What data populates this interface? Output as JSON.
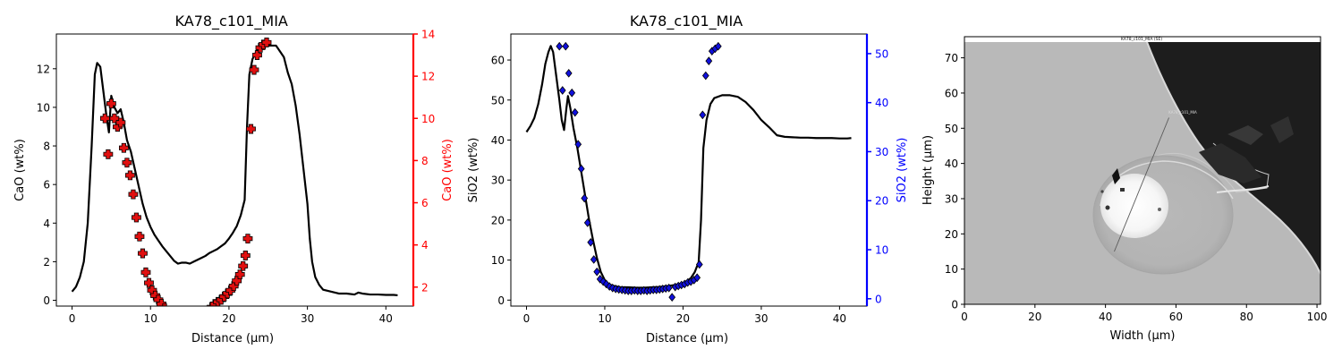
{
  "chart_data": [
    {
      "type": "line",
      "title": "KA78_c101_MIA",
      "xlabel": "Distance (µm)",
      "ylabel": "CaO (wt%)",
      "y2label": "CaO (wt%)",
      "xlim": [
        -2,
        43.5
      ],
      "ylim": [
        -0.3,
        13.8
      ],
      "y2lim": [
        1.1,
        14
      ],
      "xticks": [
        0,
        10,
        20,
        30,
        40
      ],
      "yticks": [
        0,
        2,
        4,
        6,
        8,
        10,
        12
      ],
      "y2ticks": [
        2,
        4,
        6,
        8,
        10,
        12,
        14
      ],
      "y2color": "#ff0000",
      "series": [
        {
          "axis": "left",
          "style": "line",
          "color": "#000000",
          "points": [
            [
              0,
              0.45
            ],
            [
              0.5,
              0.7
            ],
            [
              1,
              1.2
            ],
            [
              1.5,
              2.0
            ],
            [
              2,
              4.0
            ],
            [
              2.5,
              8.0
            ],
            [
              2.9,
              11.7
            ],
            [
              3.2,
              12.3
            ],
            [
              3.6,
              12.1
            ],
            [
              4,
              10.8
            ],
            [
              4.4,
              9.5
            ],
            [
              4.7,
              8.7
            ],
            [
              5,
              10.6
            ],
            [
              5.4,
              10.0
            ],
            [
              5.8,
              9.7
            ],
            [
              6.2,
              9.9
            ],
            [
              6.6,
              9.2
            ],
            [
              7,
              8.3
            ],
            [
              7.5,
              7.7
            ],
            [
              8,
              6.8
            ],
            [
              8.5,
              5.9
            ],
            [
              9,
              5.0
            ],
            [
              9.5,
              4.3
            ],
            [
              10,
              3.8
            ],
            [
              10.5,
              3.4
            ],
            [
              11,
              3.1
            ],
            [
              11.5,
              2.8
            ],
            [
              12,
              2.55
            ],
            [
              12.5,
              2.3
            ],
            [
              13,
              2.05
            ],
            [
              13.5,
              1.9
            ],
            [
              14,
              1.95
            ],
            [
              14.5,
              1.95
            ],
            [
              15,
              1.9
            ],
            [
              15.5,
              2.0
            ],
            [
              16,
              2.1
            ],
            [
              16.5,
              2.2
            ],
            [
              17,
              2.3
            ],
            [
              17.5,
              2.45
            ],
            [
              18,
              2.55
            ],
            [
              18.5,
              2.65
            ],
            [
              19,
              2.8
            ],
            [
              19.5,
              2.95
            ],
            [
              20,
              3.2
            ],
            [
              20.5,
              3.5
            ],
            [
              21,
              3.85
            ],
            [
              21.5,
              4.4
            ],
            [
              22,
              5.2
            ],
            [
              22.3,
              9.0
            ],
            [
              22.6,
              11.7
            ],
            [
              23,
              12.5
            ],
            [
              23.5,
              12.9
            ],
            [
              24,
              13.2
            ],
            [
              24.5,
              13.25
            ],
            [
              25,
              13.2
            ],
            [
              25.5,
              13.2
            ],
            [
              26,
              13.2
            ],
            [
              26.5,
              12.9
            ],
            [
              27,
              12.6
            ],
            [
              27.5,
              11.8
            ],
            [
              28,
              11.2
            ],
            [
              28.5,
              10.1
            ],
            [
              29,
              8.6
            ],
            [
              29.5,
              6.8
            ],
            [
              30,
              5.0
            ],
            [
              30.3,
              3.2
            ],
            [
              30.6,
              2.0
            ],
            [
              31,
              1.2
            ],
            [
              31.5,
              0.8
            ],
            [
              32,
              0.55
            ],
            [
              33,
              0.45
            ],
            [
              34,
              0.35
            ],
            [
              35,
              0.35
            ],
            [
              36,
              0.3
            ],
            [
              36.5,
              0.4
            ],
            [
              37,
              0.35
            ],
            [
              38,
              0.3
            ],
            [
              39,
              0.3
            ],
            [
              40,
              0.28
            ],
            [
              41,
              0.28
            ],
            [
              41.5,
              0.26
            ]
          ]
        },
        {
          "axis": "right",
          "style": "markers",
          "marker": "P",
          "color": "#e01010",
          "points": [
            [
              4.2,
              10.0
            ],
            [
              4.6,
              8.3
            ],
            [
              5.0,
              10.7
            ],
            [
              5.4,
              10.0
            ],
            [
              5.8,
              9.6
            ],
            [
              6.2,
              9.8
            ],
            [
              6.6,
              8.6
            ],
            [
              7.0,
              7.9
            ],
            [
              7.4,
              7.3
            ],
            [
              7.8,
              6.4
            ],
            [
              8.2,
              5.3
            ],
            [
              8.6,
              4.4
            ],
            [
              9.0,
              3.6
            ],
            [
              9.4,
              2.7
            ],
            [
              9.8,
              2.2
            ],
            [
              10.2,
              1.85
            ],
            [
              10.6,
              1.6
            ],
            [
              11.0,
              1.4
            ],
            [
              11.4,
              1.2
            ],
            [
              11.8,
              1.0
            ],
            [
              12.2,
              0.75
            ],
            [
              12.6,
              0.55
            ],
            [
              13.0,
              0.45
            ],
            [
              13.4,
              0.45
            ],
            [
              13.8,
              0.5
            ],
            [
              14.2,
              0.55
            ],
            [
              14.6,
              0.5
            ],
            [
              15.0,
              0.45
            ],
            [
              15.4,
              0.45
            ],
            [
              15.8,
              0.55
            ],
            [
              16.2,
              0.6
            ],
            [
              16.6,
              0.7
            ],
            [
              17.0,
              0.8
            ],
            [
              17.4,
              0.9
            ],
            [
              17.8,
              1.05
            ],
            [
              18.2,
              1.2
            ],
            [
              18.6,
              1.3
            ],
            [
              19.0,
              1.4
            ],
            [
              19.4,
              1.55
            ],
            [
              19.8,
              1.7
            ],
            [
              20.2,
              1.85
            ],
            [
              20.6,
              2.05
            ],
            [
              21.0,
              2.3
            ],
            [
              21.4,
              2.6
            ],
            [
              21.8,
              3.0
            ],
            [
              22.1,
              3.5
            ],
            [
              22.4,
              4.3
            ],
            [
              22.8,
              9.5
            ],
            [
              23.2,
              12.3
            ],
            [
              23.6,
              13.0
            ],
            [
              24.0,
              13.35
            ],
            [
              24.4,
              13.5
            ],
            [
              24.8,
              13.6
            ]
          ]
        }
      ]
    },
    {
      "type": "line",
      "title": "KA78_c101_MIA",
      "xlabel": "Distance (µm)",
      "ylabel": "SiO2 (wt%)",
      "y2label": "SiO2 (wt%)",
      "xlim": [
        -2,
        43.5
      ],
      "ylim": [
        -1.5,
        66.5
      ],
      "y2lim": [
        -1.5,
        54
      ],
      "xticks": [
        0,
        10,
        20,
        30,
        40
      ],
      "yticks": [
        0,
        10,
        20,
        30,
        40,
        50,
        60
      ],
      "y2ticks": [
        0,
        10,
        20,
        30,
        40,
        50
      ],
      "y2color": "#0000ff",
      "series": [
        {
          "axis": "left",
          "style": "line",
          "color": "#000000",
          "points": [
            [
              0,
              42
            ],
            [
              0.5,
              43.5
            ],
            [
              1,
              45.5
            ],
            [
              1.5,
              49
            ],
            [
              2,
              54
            ],
            [
              2.4,
              59
            ],
            [
              2.8,
              62
            ],
            [
              3.1,
              63.5
            ],
            [
              3.4,
              62
            ],
            [
              3.8,
              56
            ],
            [
              4.2,
              50
            ],
            [
              4.5,
              45
            ],
            [
              4.8,
              42.5
            ],
            [
              5.1,
              48
            ],
            [
              5.3,
              51
            ],
            [
              5.6,
              48
            ],
            [
              6,
              43
            ],
            [
              6.5,
              38
            ],
            [
              7,
              32
            ],
            [
              7.5,
              26
            ],
            [
              8,
              20
            ],
            [
              8.5,
              15
            ],
            [
              9,
              10.5
            ],
            [
              9.5,
              7
            ],
            [
              10,
              5
            ],
            [
              10.5,
              4
            ],
            [
              11,
              3.6
            ],
            [
              11.5,
              3.4
            ],
            [
              12,
              3.2
            ],
            [
              13,
              3.2
            ],
            [
              14,
              3.1
            ],
            [
              15,
              3.1
            ],
            [
              16,
              3.2
            ],
            [
              17,
              3.3
            ],
            [
              18,
              3.5
            ],
            [
              19,
              3.8
            ],
            [
              20,
              4.3
            ],
            [
              20.5,
              4.8
            ],
            [
              21,
              5.5
            ],
            [
              21.5,
              7
            ],
            [
              22,
              9.5
            ],
            [
              22.3,
              20
            ],
            [
              22.6,
              38
            ],
            [
              23,
              45
            ],
            [
              23.5,
              49
            ],
            [
              24,
              50.5
            ],
            [
              25,
              51.2
            ],
            [
              26,
              51.2
            ],
            [
              27,
              50.8
            ],
            [
              28,
              49.5
            ],
            [
              29,
              47.5
            ],
            [
              30,
              45
            ],
            [
              31,
              43.2
            ],
            [
              32,
              41.2
            ],
            [
              33,
              40.8
            ],
            [
              34,
              40.7
            ],
            [
              35,
              40.6
            ],
            [
              36,
              40.6
            ],
            [
              37,
              40.5
            ],
            [
              38,
              40.5
            ],
            [
              39,
              40.5
            ],
            [
              40,
              40.4
            ],
            [
              41,
              40.4
            ],
            [
              41.5,
              40.5
            ]
          ]
        },
        {
          "axis": "right",
          "style": "markers",
          "marker": "D",
          "color": "#1010dd",
          "points": [
            [
              4.2,
              51.5
            ],
            [
              4.6,
              42.5
            ],
            [
              5.0,
              51.5
            ],
            [
              5.4,
              46.0
            ],
            [
              5.8,
              42.0
            ],
            [
              6.2,
              38.0
            ],
            [
              6.6,
              31.5
            ],
            [
              7.0,
              26.5
            ],
            [
              7.4,
              20.5
            ],
            [
              7.8,
              15.5
            ],
            [
              8.2,
              11.5
            ],
            [
              8.6,
              8.0
            ],
            [
              9.0,
              5.5
            ],
            [
              9.4,
              4.0
            ],
            [
              9.8,
              3.5
            ],
            [
              10.2,
              3.0
            ],
            [
              10.6,
              2.5
            ],
            [
              11.0,
              2.2
            ],
            [
              11.4,
              2.0
            ],
            [
              11.8,
              1.9
            ],
            [
              12.2,
              1.8
            ],
            [
              12.6,
              1.7
            ],
            [
              13.0,
              1.6
            ],
            [
              13.4,
              1.6
            ],
            [
              13.8,
              1.7
            ],
            [
              14.2,
              1.6
            ],
            [
              14.6,
              1.6
            ],
            [
              15.0,
              1.7
            ],
            [
              15.4,
              1.6
            ],
            [
              15.8,
              1.7
            ],
            [
              16.2,
              1.8
            ],
            [
              16.6,
              1.8
            ],
            [
              17.0,
              1.9
            ],
            [
              17.4,
              2.0
            ],
            [
              17.8,
              2.1
            ],
            [
              18.2,
              2.2
            ],
            [
              18.6,
              0.3
            ],
            [
              19.0,
              2.4
            ],
            [
              19.4,
              2.6
            ],
            [
              19.8,
              2.8
            ],
            [
              20.2,
              3.0
            ],
            [
              20.6,
              3.3
            ],
            [
              21.0,
              3.5
            ],
            [
              21.4,
              3.8
            ],
            [
              21.8,
              4.3
            ],
            [
              22.1,
              7.0
            ],
            [
              22.5,
              37.5
            ],
            [
              22.9,
              45.5
            ],
            [
              23.3,
              48.5
            ],
            [
              23.7,
              50.5
            ],
            [
              24.1,
              51.0
            ],
            [
              24.5,
              51.5
            ]
          ]
        }
      ]
    },
    {
      "type": "image",
      "xlabel": "Width (µm)",
      "ylabel": "Height (µm)",
      "xlim": [
        0,
        101
      ],
      "ylim": [
        0,
        76
      ],
      "xticks": [
        0,
        20,
        40,
        60,
        80,
        100
      ],
      "yticks": [
        0,
        10,
        20,
        30,
        40,
        50,
        60,
        70
      ],
      "header_label": "KA78_c101_MIA (SE)",
      "overlay_label": "KA78_c101_MIA",
      "scan_line": [
        [
          42.5,
          15
        ],
        [
          58,
          53
        ]
      ]
    }
  ]
}
